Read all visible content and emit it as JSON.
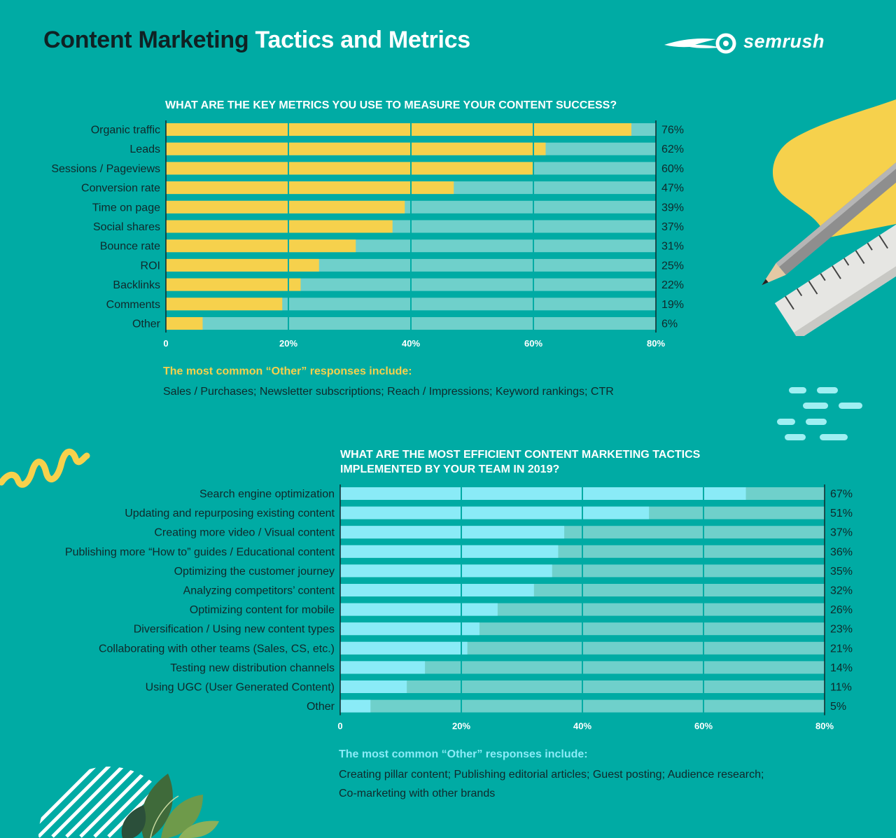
{
  "header": {
    "title_dark": "Content Marketing",
    "title_light": "Tactics and Metrics",
    "brand": "semrush"
  },
  "colors": {
    "background": "#00ABA4",
    "metrics_bar": "#F6D14C",
    "tactics_bar": "#8AEBF7",
    "track": "#6FD0CB",
    "title_dark": "#0F2224"
  },
  "chart_data": [
    {
      "type": "bar",
      "orientation": "horizontal",
      "title": "WHAT ARE THE KEY METRICS YOU USE TO MEASURE YOUR CONTENT SUCCESS?",
      "categories": [
        "Organic traffic",
        "Leads",
        "Sessions / Pageviews",
        "Conversion rate",
        "Time on page",
        "Social shares",
        "Bounce rate",
        "ROI",
        "Backlinks",
        "Comments",
        "Other"
      ],
      "values": [
        76,
        62,
        60,
        47,
        39,
        37,
        31,
        25,
        22,
        19,
        6
      ],
      "value_labels": [
        "76%",
        "62%",
        "60%",
        "47%",
        "39%",
        "37%",
        "31%",
        "25%",
        "22%",
        "19%",
        "6%"
      ],
      "unit": "%",
      "xlim": [
        0,
        80
      ],
      "ticks": [
        0,
        20,
        40,
        60,
        80
      ],
      "tick_labels": [
        "0",
        "20%",
        "40%",
        "60%",
        "80%"
      ],
      "grid": true,
      "note_label": "The most common “Other” responses include:",
      "note_text": "Sales / Purchases; Newsletter subscriptions; Reach / Impressions; Keyword rankings; CTR"
    },
    {
      "type": "bar",
      "orientation": "horizontal",
      "title_lines": [
        "WHAT ARE THE MOST EFFICIENT CONTENT MARKETING TACTICS",
        "IMPLEMENTED BY YOUR TEAM IN 2019?"
      ],
      "categories": [
        "Search engine optimization",
        "Updating and repurposing existing content",
        "Creating more video / Visual content",
        "Publishing more “How to” guides / Educational content",
        "Optimizing the customer journey",
        "Analyzing competitors’ content",
        "Optimizing content for mobile",
        "Diversification / Using new content types",
        "Collaborating with other teams (Sales, CS, etc.)",
        "Testing new distribution channels",
        "Using UGC (User Generated Content)",
        "Other"
      ],
      "values": [
        67,
        51,
        37,
        36,
        35,
        32,
        26,
        23,
        21,
        14,
        11,
        5
      ],
      "value_labels": [
        "67%",
        "51%",
        "37%",
        "36%",
        "35%",
        "32%",
        "26%",
        "23%",
        "21%",
        "14%",
        "11%",
        "5%"
      ],
      "unit": "%",
      "xlim": [
        0,
        80
      ],
      "ticks": [
        0,
        20,
        40,
        60,
        80
      ],
      "tick_labels": [
        "0",
        "20%",
        "40%",
        "60%",
        "80%"
      ],
      "grid": true,
      "note_label": "The most common “Other” responses include:",
      "note_text_lines": [
        "Creating pillar content; Publishing editorial articles; Guest posting; Audience research;",
        "Co-marketing with other brands"
      ]
    }
  ]
}
